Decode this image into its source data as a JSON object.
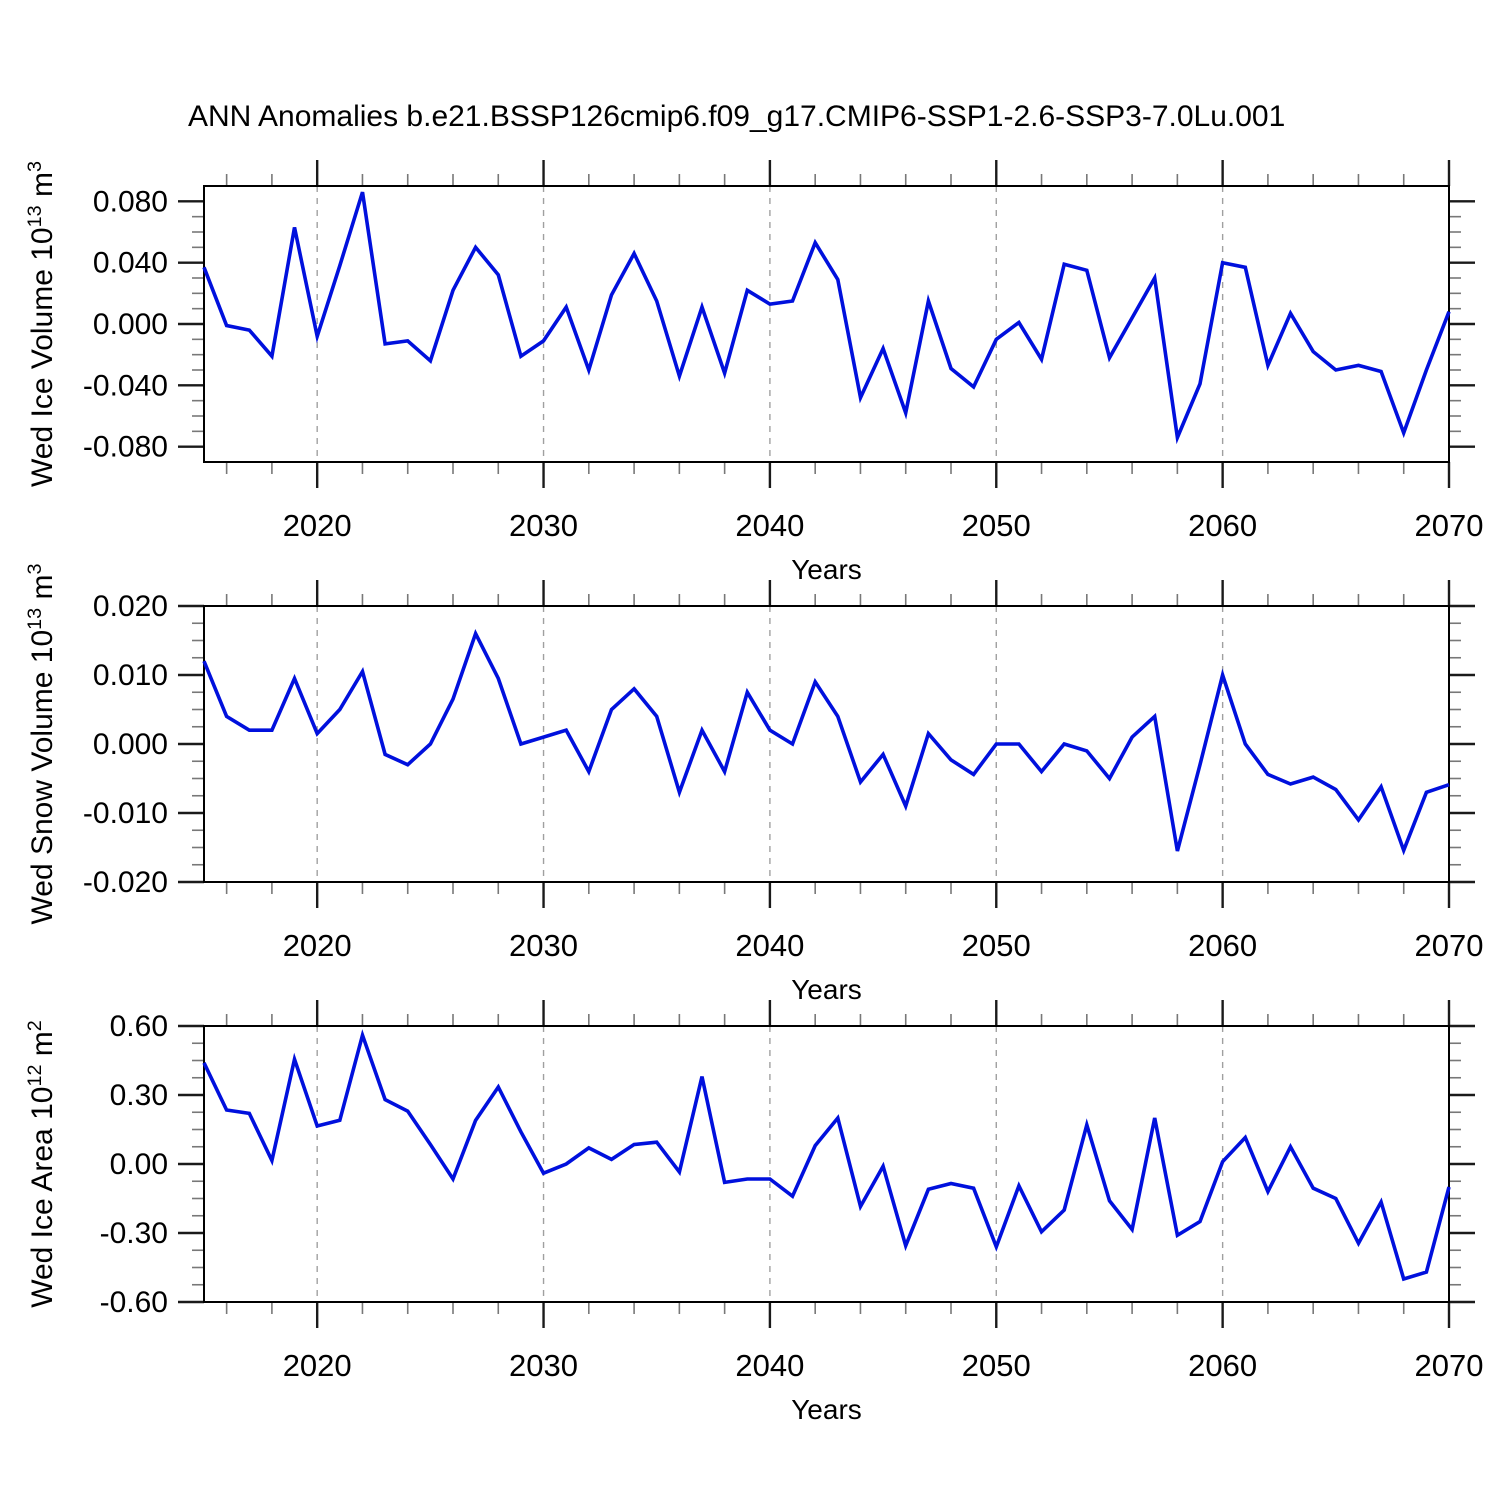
{
  "page": {
    "title": "ANN Anomalies b.e21.BSSP126cmip6.f09_g17.CMIP6-SSP1-2.6-SSP3-7.0Lu.001"
  },
  "colors": {
    "line": "#0010dd",
    "axis": "#000000",
    "major_tick": "#1a1a1a",
    "minor_tick": "#787878",
    "gridline": "#a0a0a0",
    "text": "#000000"
  },
  "axis": {
    "xlabel": "Years",
    "x_tick_values": [
      2020,
      2030,
      2040,
      2050,
      2060,
      2070
    ],
    "x_tick_labels": [
      "2020",
      "2030",
      "2040",
      "2050",
      "2060",
      "2070"
    ],
    "x_gridlines": [
      2020,
      2030,
      2040,
      2050,
      2060
    ],
    "x_minor_step_years": 2,
    "xlim": [
      2015,
      2070
    ]
  },
  "years": [
    2015,
    2016,
    2017,
    2018,
    2019,
    2020,
    2021,
    2022,
    2023,
    2024,
    2025,
    2026,
    2027,
    2028,
    2029,
    2030,
    2031,
    2032,
    2033,
    2034,
    2035,
    2036,
    2037,
    2038,
    2039,
    2040,
    2041,
    2042,
    2043,
    2044,
    2045,
    2046,
    2047,
    2048,
    2049,
    2050,
    2051,
    2052,
    2053,
    2054,
    2055,
    2056,
    2057,
    2058,
    2059,
    2060,
    2061,
    2062,
    2063,
    2064,
    2065,
    2066,
    2067,
    2068,
    2069,
    2070
  ],
  "chart_data": [
    {
      "type": "line",
      "name": "wed-ice-volume",
      "ylabel": {
        "text": "Wed Ice Volume 10",
        "exp": "13",
        "unit": " m",
        "unit_exp": "3"
      },
      "ylabel_plain": "Wed Ice Volume 10^13 m^3",
      "xlabel": "Years",
      "ylim": [
        -0.09,
        0.09
      ],
      "y_minor_step": 0.01,
      "yticks": [
        {
          "value": 0.08,
          "label": "0.080"
        },
        {
          "value": 0.04,
          "label": "0.040"
        },
        {
          "value": 0.0,
          "label": "0.000"
        },
        {
          "value": -0.04,
          "label": "-0.040"
        },
        {
          "value": -0.08,
          "label": "-0.080"
        }
      ],
      "values": [
        0.037,
        -0.001,
        -0.004,
        -0.021,
        0.063,
        -0.008,
        0.038,
        0.086,
        -0.013,
        -0.011,
        -0.024,
        0.022,
        0.05,
        0.032,
        -0.021,
        -0.011,
        0.011,
        -0.03,
        0.019,
        0.046,
        0.015,
        -0.034,
        0.011,
        -0.032,
        0.022,
        0.013,
        0.015,
        0.053,
        0.029,
        -0.048,
        -0.016,
        -0.058,
        0.015,
        -0.029,
        -0.041,
        -0.01,
        0.001,
        -0.023,
        0.039,
        0.035,
        -0.022,
        0.004,
        0.03,
        -0.074,
        -0.039,
        0.04,
        0.037,
        -0.027,
        0.007,
        -0.018,
        -0.03,
        -0.027,
        -0.031,
        -0.071,
        -0.03,
        0.008
      ]
    },
    {
      "type": "line",
      "name": "wed-snow-volume",
      "ylabel": {
        "text": "Wed Snow Volume 10",
        "exp": "13",
        "unit": " m",
        "unit_exp": "3"
      },
      "ylabel_plain": "Wed Snow Volume 10^13 m^3",
      "xlabel": "Years",
      "ylim": [
        -0.02,
        0.02
      ],
      "y_minor_step": 0.0025,
      "yticks": [
        {
          "value": 0.02,
          "label": "0.020"
        },
        {
          "value": 0.01,
          "label": "0.010"
        },
        {
          "value": 0.0,
          "label": "0.000"
        },
        {
          "value": -0.01,
          "label": "-0.010"
        },
        {
          "value": -0.02,
          "label": "-0.020"
        }
      ],
      "values": [
        0.012,
        0.004,
        0.002,
        0.002,
        0.0095,
        0.0015,
        0.005,
        0.0105,
        -0.0015,
        -0.003,
        0.0,
        0.0065,
        0.016,
        0.0095,
        0.0,
        0.001,
        0.002,
        -0.004,
        0.005,
        0.008,
        0.004,
        -0.007,
        0.002,
        -0.004,
        0.0075,
        0.002,
        0.0,
        0.009,
        0.004,
        -0.0055,
        -0.0015,
        -0.009,
        0.0015,
        -0.0023,
        -0.0044,
        0.0,
        0.0,
        -0.004,
        0.0,
        -0.001,
        -0.005,
        0.001,
        0.004,
        -0.0155,
        -0.003,
        0.01,
        0.0,
        -0.0044,
        -0.0058,
        -0.0048,
        -0.0066,
        -0.011,
        -0.0062,
        -0.0154,
        -0.007,
        -0.0059
      ]
    },
    {
      "type": "line",
      "name": "wed-ice-area",
      "ylabel": {
        "text": "Wed Ice Area 10",
        "exp": "12",
        "unit": " m",
        "unit_exp": "2"
      },
      "ylabel_plain": "Wed Ice Area 10^12 m^2",
      "xlabel": "Years",
      "ylim": [
        -0.6,
        0.6
      ],
      "y_minor_step": 0.075,
      "yticks": [
        {
          "value": 0.6,
          "label": "0.60"
        },
        {
          "value": 0.3,
          "label": "0.30"
        },
        {
          "value": 0.0,
          "label": "0.00"
        },
        {
          "value": -0.3,
          "label": "-0.30"
        },
        {
          "value": -0.6,
          "label": "-0.60"
        }
      ],
      "values": [
        0.44,
        0.235,
        0.22,
        0.015,
        0.455,
        0.165,
        0.19,
        0.56,
        0.28,
        0.23,
        0.085,
        -0.065,
        0.19,
        0.335,
        0.14,
        -0.04,
        0.0,
        0.07,
        0.02,
        0.085,
        0.095,
        -0.035,
        0.38,
        -0.08,
        -0.065,
        -0.065,
        -0.14,
        0.08,
        0.2,
        -0.185,
        -0.01,
        -0.355,
        -0.11,
        -0.085,
        -0.105,
        -0.36,
        -0.095,
        -0.295,
        -0.2,
        0.17,
        -0.16,
        -0.285,
        0.2,
        -0.31,
        -0.25,
        0.01,
        0.115,
        -0.12,
        0.075,
        -0.105,
        -0.15,
        -0.345,
        -0.165,
        -0.5,
        -0.47,
        -0.1
      ]
    }
  ]
}
